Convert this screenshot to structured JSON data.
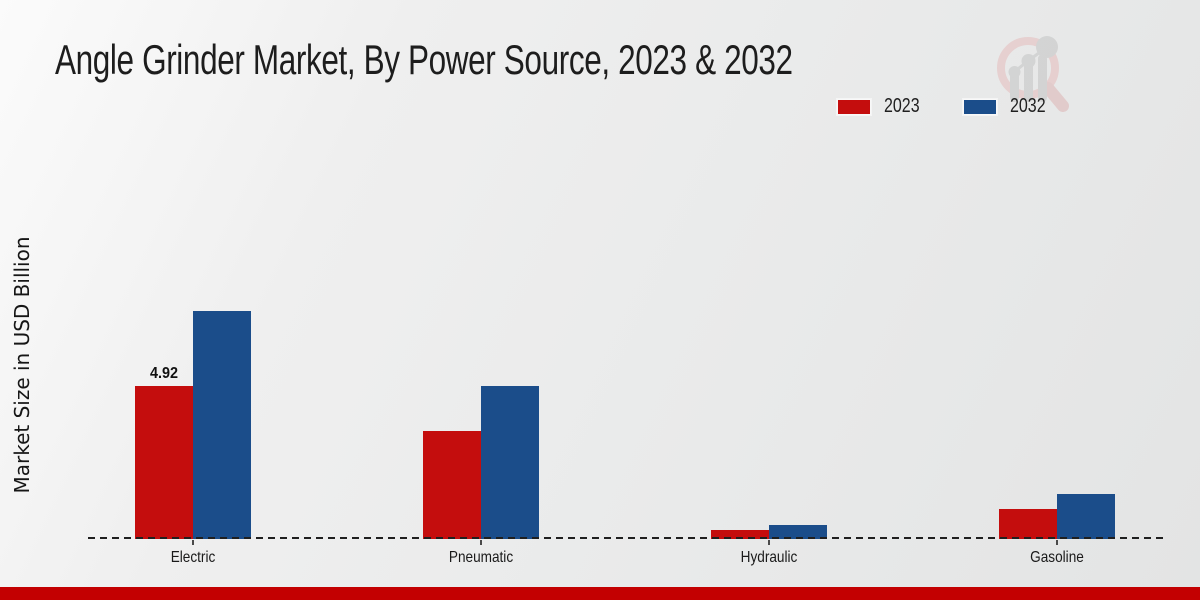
{
  "title": "Angle Grinder Market, By Power Source, 2023 & 2032",
  "legend": {
    "items": [
      {
        "label": "2023",
        "color": "#c40d0d"
      },
      {
        "label": "2032",
        "color": "#1b4d8a"
      }
    ]
  },
  "chart_data": {
    "type": "bar",
    "title": "Angle Grinder Market, By Power Source, 2023 & 2032",
    "categories": [
      "Electric",
      "Pneumatic",
      "Hydraulic",
      "Gasoline"
    ],
    "series": [
      {
        "name": "2023",
        "color": "#c40d0d",
        "values": [
          4.92,
          3.48,
          0.29,
          0.97
        ]
      },
      {
        "name": "2032",
        "color": "#1b4d8a",
        "values": [
          7.33,
          4.93,
          0.45,
          1.45
        ]
      }
    ],
    "xlabel": "",
    "ylabel": "Market Size in USD Billion",
    "ylim": [
      0,
      7.7
    ],
    "grid": false,
    "legend_position": "top-right",
    "baseline_style": "dashed",
    "bar_labels": [
      {
        "series_index": 0,
        "category_index": 0,
        "text": "4.92"
      }
    ]
  },
  "watermark_icon": "magnifier-bar-chart-logo",
  "footer_strip_color": "#c30001"
}
